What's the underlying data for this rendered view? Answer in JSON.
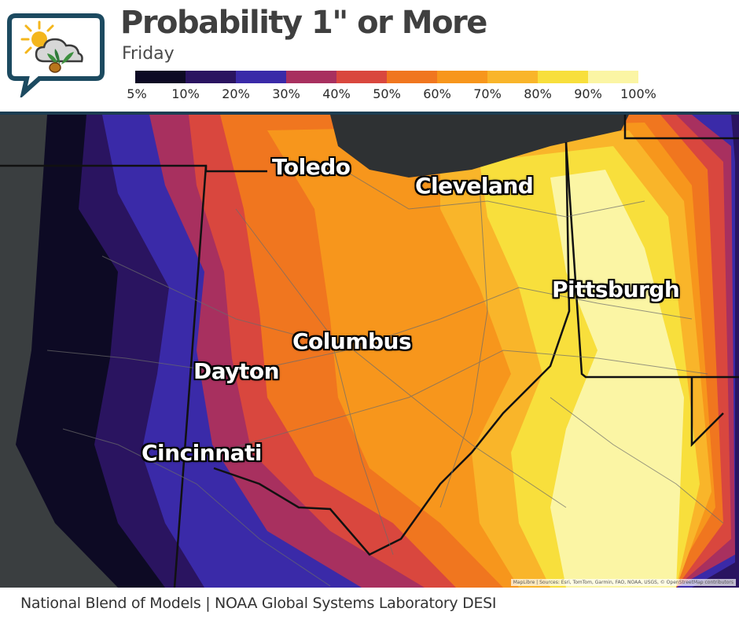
{
  "header": {
    "title": "Probability 1\" or More",
    "subtitle": "Friday"
  },
  "legend": {
    "colors": [
      "#0d0a24",
      "#2a1460",
      "#3a2aa8",
      "#a8305f",
      "#d9473e",
      "#f0761f",
      "#f7961c",
      "#f9b52a",
      "#f8df3c",
      "#fbf5a4"
    ],
    "labels": [
      "5%",
      "10%",
      "20%",
      "30%",
      "40%",
      "50%",
      "60%",
      "70%",
      "80%",
      "90%",
      "100%"
    ]
  },
  "map": {
    "cities": [
      "Toledo",
      "Cleveland",
      "Pittsburgh",
      "Columbus",
      "Dayton",
      "Cincinnati"
    ],
    "attribution": "MapLibre | Sources: Esri, TomTom, Garmin, FAO, NOAA, USGS, © OpenStreetMap contributors"
  },
  "footer": {
    "credit": "National Blend of Models | NOAA Global Systems Laboratory DESI"
  }
}
